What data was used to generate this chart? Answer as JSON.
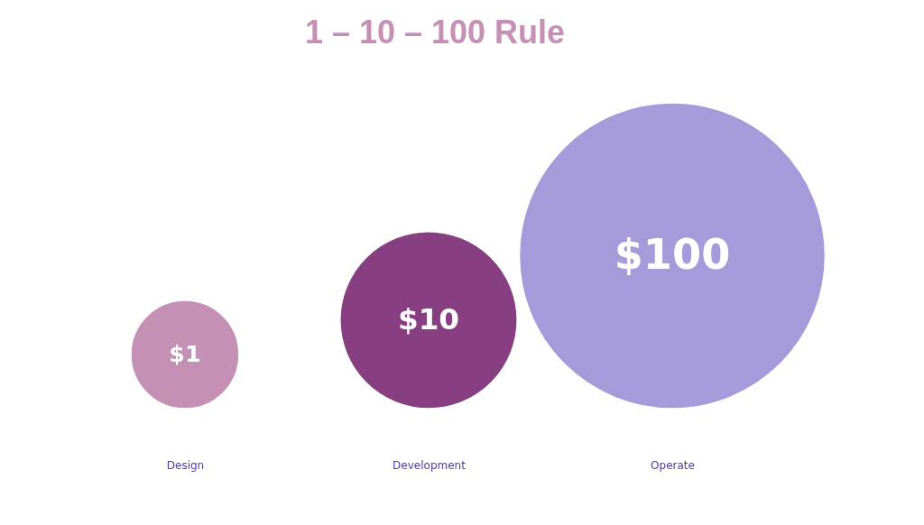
{
  "chart_data": {
    "type": "other",
    "title": "1 – 10 – 100 Rule",
    "categories": [
      "Design",
      "Development",
      "Operate"
    ],
    "values": [
      1,
      10,
      100
    ],
    "value_labels": [
      "$1",
      "$10",
      "$100"
    ],
    "colors": [
      "#c490b4",
      "#873f82",
      "#a59bda"
    ]
  }
}
